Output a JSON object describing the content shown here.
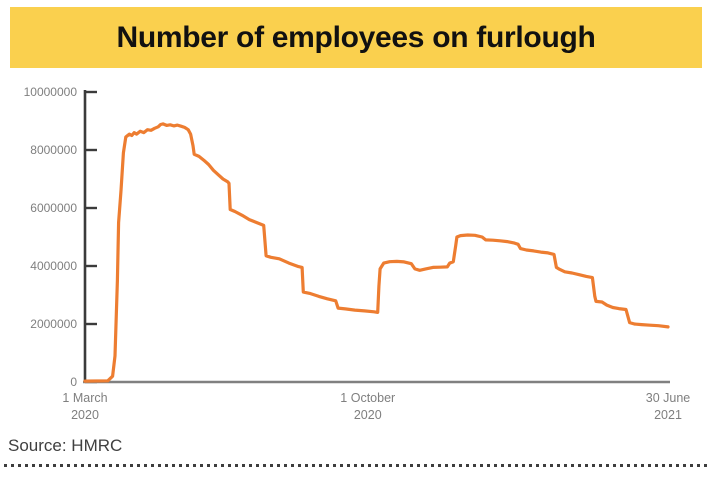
{
  "header": {
    "title": "Number of employees on furlough"
  },
  "footer": {
    "source_text": "Source: HMRC"
  },
  "colors": {
    "banner_yellow": "#FAD04E",
    "line_orange": "#ED7D31",
    "y_axis_line": "#3b3b3b",
    "x_axis_line": "#808080",
    "tick_label_gray": "#7f7f7f",
    "source_text_gray": "#404040"
  },
  "chart_data": {
    "type": "line",
    "title": "Number of employees on furlough",
    "xlabel": "",
    "ylabel": "",
    "ylim": [
      0,
      10000000
    ],
    "grid": false,
    "legend": false,
    "y_ticks": [
      0,
      2000000,
      4000000,
      6000000,
      8000000,
      10000000
    ],
    "y_tick_labels": [
      "0",
      "2000000",
      "4000000",
      "6000000",
      "8000000",
      "10000000"
    ],
    "x_axis": {
      "start": "2020-03-01",
      "end": "2021-06-30",
      "tick_labels": [
        {
          "line1": "1 March",
          "line2": "2020"
        },
        {
          "line1": "1 October",
          "line2": "2020"
        },
        {
          "line1": "30 June",
          "line2": "2021"
        }
      ]
    },
    "series": [
      {
        "name": "Employees on furlough",
        "color": "#ED7D31",
        "points": [
          [
            "2020-03-01",
            30000
          ],
          [
            "2020-03-20",
            40000
          ],
          [
            "2020-03-24",
            200000
          ],
          [
            "2020-03-26",
            900000
          ],
          [
            "2020-03-28",
            3500000
          ],
          [
            "2020-03-29",
            5500000
          ],
          [
            "2020-03-31",
            6600000
          ],
          [
            "2020-04-02",
            7900000
          ],
          [
            "2020-04-04",
            8450000
          ],
          [
            "2020-04-07",
            8550000
          ],
          [
            "2020-04-09",
            8500000
          ],
          [
            "2020-04-11",
            8600000
          ],
          [
            "2020-04-13",
            8550000
          ],
          [
            "2020-04-16",
            8650000
          ],
          [
            "2020-04-19",
            8600000
          ],
          [
            "2020-04-22",
            8700000
          ],
          [
            "2020-04-25",
            8680000
          ],
          [
            "2020-04-28",
            8750000
          ],
          [
            "2020-05-01",
            8800000
          ],
          [
            "2020-05-03",
            8880000
          ],
          [
            "2020-05-05",
            8900000
          ],
          [
            "2020-05-08",
            8850000
          ],
          [
            "2020-05-11",
            8870000
          ],
          [
            "2020-05-14",
            8830000
          ],
          [
            "2020-05-17",
            8860000
          ],
          [
            "2020-05-20",
            8820000
          ],
          [
            "2020-05-23",
            8780000
          ],
          [
            "2020-05-26",
            8700000
          ],
          [
            "2020-05-28",
            8550000
          ],
          [
            "2020-05-30",
            8150000
          ],
          [
            "2020-05-31",
            7850000
          ],
          [
            "2020-06-04",
            7780000
          ],
          [
            "2020-06-08",
            7650000
          ],
          [
            "2020-06-12",
            7500000
          ],
          [
            "2020-06-16",
            7300000
          ],
          [
            "2020-06-20",
            7150000
          ],
          [
            "2020-06-24",
            7000000
          ],
          [
            "2020-06-28",
            6900000
          ],
          [
            "2020-06-29",
            6850000
          ],
          [
            "2020-06-30",
            5950000
          ],
          [
            "2020-07-04",
            5880000
          ],
          [
            "2020-07-10",
            5750000
          ],
          [
            "2020-07-16",
            5600000
          ],
          [
            "2020-07-22",
            5500000
          ],
          [
            "2020-07-28",
            5400000
          ],
          [
            "2020-07-30",
            4350000
          ],
          [
            "2020-08-03",
            4300000
          ],
          [
            "2020-08-10",
            4250000
          ],
          [
            "2020-08-18",
            4100000
          ],
          [
            "2020-08-26",
            3980000
          ],
          [
            "2020-08-29",
            3950000
          ],
          [
            "2020-08-30",
            3100000
          ],
          [
            "2020-09-05",
            3050000
          ],
          [
            "2020-09-12",
            2950000
          ],
          [
            "2020-09-19",
            2870000
          ],
          [
            "2020-09-26",
            2800000
          ],
          [
            "2020-09-28",
            2550000
          ],
          [
            "2020-10-04",
            2520000
          ],
          [
            "2020-10-12",
            2480000
          ],
          [
            "2020-10-20",
            2450000
          ],
          [
            "2020-10-28",
            2420000
          ],
          [
            "2020-10-31",
            2400000
          ],
          [
            "2020-11-01",
            3300000
          ],
          [
            "2020-11-02",
            3900000
          ],
          [
            "2020-11-05",
            4100000
          ],
          [
            "2020-11-10",
            4150000
          ],
          [
            "2020-11-16",
            4160000
          ],
          [
            "2020-11-22",
            4140000
          ],
          [
            "2020-11-28",
            4080000
          ],
          [
            "2020-12-01",
            3900000
          ],
          [
            "2020-12-05",
            3850000
          ],
          [
            "2020-12-10",
            3900000
          ],
          [
            "2020-12-16",
            3950000
          ],
          [
            "2020-12-22",
            3960000
          ],
          [
            "2020-12-28",
            3970000
          ],
          [
            "2020-12-30",
            4100000
          ],
          [
            "2021-01-02",
            4150000
          ],
          [
            "2021-01-04",
            4700000
          ],
          [
            "2021-01-05",
            5000000
          ],
          [
            "2021-01-08",
            5050000
          ],
          [
            "2021-01-14",
            5070000
          ],
          [
            "2021-01-20",
            5060000
          ],
          [
            "2021-01-26",
            5000000
          ],
          [
            "2021-01-29",
            4900000
          ],
          [
            "2021-02-04",
            4890000
          ],
          [
            "2021-02-10",
            4870000
          ],
          [
            "2021-02-16",
            4840000
          ],
          [
            "2021-02-22",
            4790000
          ],
          [
            "2021-02-25",
            4750000
          ],
          [
            "2021-02-27",
            4600000
          ],
          [
            "2021-03-04",
            4550000
          ],
          [
            "2021-03-10",
            4520000
          ],
          [
            "2021-03-16",
            4480000
          ],
          [
            "2021-03-22",
            4450000
          ],
          [
            "2021-03-27",
            4400000
          ],
          [
            "2021-03-29",
            3950000
          ],
          [
            "2021-03-31",
            3900000
          ],
          [
            "2021-04-05",
            3800000
          ],
          [
            "2021-04-11",
            3760000
          ],
          [
            "2021-04-17",
            3700000
          ],
          [
            "2021-04-23",
            3640000
          ],
          [
            "2021-04-28",
            3600000
          ],
          [
            "2021-04-30",
            2950000
          ],
          [
            "2021-05-01",
            2780000
          ],
          [
            "2021-05-06",
            2760000
          ],
          [
            "2021-05-10",
            2650000
          ],
          [
            "2021-05-15",
            2570000
          ],
          [
            "2021-05-20",
            2530000
          ],
          [
            "2021-05-26",
            2500000
          ],
          [
            "2021-05-29",
            2050000
          ],
          [
            "2021-06-02",
            2000000
          ],
          [
            "2021-06-08",
            1980000
          ],
          [
            "2021-06-15",
            1960000
          ],
          [
            "2021-06-22",
            1940000
          ],
          [
            "2021-06-30",
            1900000
          ]
        ]
      }
    ]
  }
}
